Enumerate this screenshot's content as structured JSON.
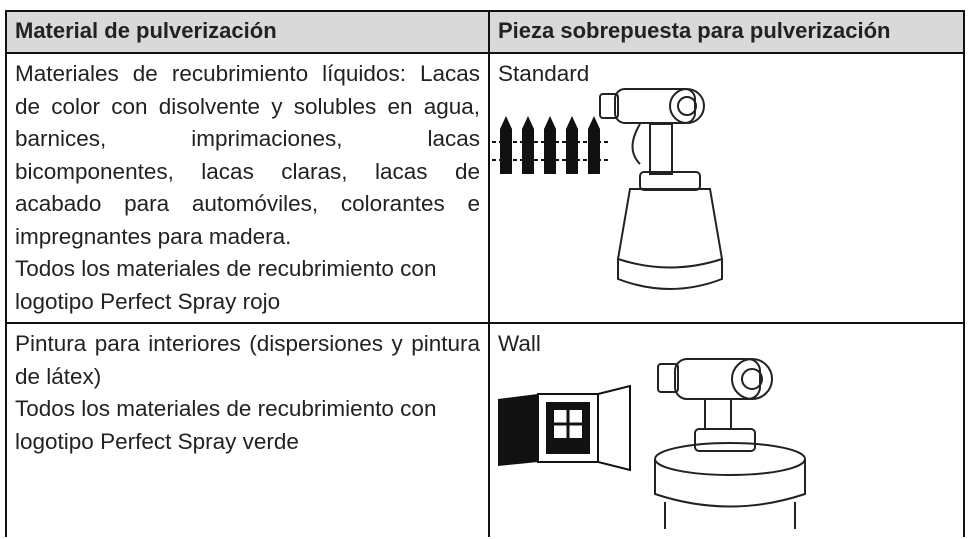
{
  "table": {
    "headers": [
      "Material de pulverización",
      "Pieza sobrepuesta para pulverización"
    ],
    "rows": [
      [
        [
          "Materiales de recubrimiento líquidos: Lacas de color con disolvente y solubles en agua, barnices, imprimaciones, lacas bicomponentes, lacas claras, lacas de acabado para automóviles, colorantes e impregnantes para madera.",
          "Todos los materiales de recubrimiento con logotipo Perfect Spray rojo"
        ],
        "Standard"
      ],
      [
        [
          "Pintura para interiores (dispersiones y pintura de látex)",
          "Todos los materiales de recubrimiento con logotipo Perfect Spray verde"
        ],
        "Wall"
      ]
    ]
  }
}
